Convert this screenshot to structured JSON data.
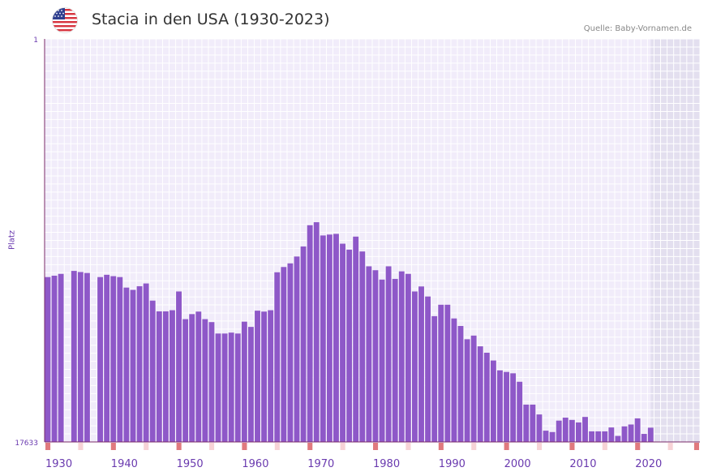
{
  "header": {
    "title": "Stacia in den USA (1930-2023)",
    "source": "Quelle: Baby-Vornamen.de",
    "flag_icon": "usa-flag-icon"
  },
  "chart_data": {
    "type": "bar",
    "title": "Stacia in den USA (1930-2023)",
    "ylabel": "Platz",
    "xlabel": "",
    "y_axis_inverted": true,
    "ylim": [
      1,
      17633
    ],
    "y_ticks": [
      "1",
      "17633"
    ],
    "xlim": [
      1930,
      2029
    ],
    "x_ticks": [
      "1930",
      "1940",
      "1950",
      "1960",
      "1970",
      "1980",
      "1990",
      "2000",
      "2010",
      "2020"
    ],
    "x_tick_values": [
      1930,
      1940,
      1950,
      1960,
      1970,
      1980,
      1990,
      2000,
      2010,
      2020
    ],
    "future_start_year": 2023,
    "series": [
      {
        "name": "Platz",
        "color": "#8e58c8",
        "years": [
          1930,
          1931,
          1932,
          1933,
          1934,
          1935,
          1936,
          1937,
          1938,
          1939,
          1940,
          1941,
          1942,
          1943,
          1944,
          1945,
          1946,
          1947,
          1948,
          1949,
          1950,
          1951,
          1952,
          1953,
          1954,
          1955,
          1956,
          1957,
          1958,
          1959,
          1960,
          1961,
          1962,
          1963,
          1964,
          1965,
          1966,
          1967,
          1968,
          1969,
          1970,
          1971,
          1972,
          1973,
          1974,
          1975,
          1976,
          1977,
          1978,
          1979,
          1980,
          1981,
          1982,
          1983,
          1984,
          1985,
          1986,
          1987,
          1988,
          1989,
          1990,
          1991,
          1992,
          1993,
          1994,
          1995,
          1996,
          1997,
          1998,
          1999,
          2000,
          2001,
          2002,
          2003,
          2004,
          2005,
          2006,
          2007,
          2008,
          2009,
          2010,
          2011,
          2012,
          2013,
          2014,
          2015,
          2016,
          2017,
          2018,
          2019,
          2020,
          2021,
          2022
        ],
        "values": [
          10420,
          10360,
          10280,
          null,
          10150,
          10200,
          10240,
          null,
          10420,
          10320,
          10380,
          10420,
          10880,
          10980,
          10820,
          10700,
          11450,
          11920,
          11920,
          11870,
          11050,
          12260,
          12040,
          11930,
          12260,
          12390,
          12890,
          12890,
          12850,
          12890,
          12370,
          12600,
          11890,
          11930,
          11870,
          10210,
          9980,
          9820,
          9520,
          9080,
          8150,
          8020,
          8600,
          8560,
          8530,
          8960,
          9220,
          8650,
          9300,
          9950,
          10120,
          10530,
          9950,
          10500,
          10170,
          10280,
          11050,
          10830,
          11270,
          12130,
          11630,
          11630,
          12230,
          12560,
          13140,
          12980,
          13450,
          13730,
          14070,
          14500,
          14570,
          14630,
          15000,
          16000,
          16000,
          16430,
          17140,
          17200,
          16700,
          16570,
          16670,
          16780,
          16540,
          17170,
          17170,
          17170,
          17000,
          17370,
          16950,
          16870,
          16600,
          17280,
          17010
        ]
      }
    ],
    "decade_markers": [
      1930,
      1940,
      1950,
      1960,
      1970,
      1980,
      1990,
      2000,
      2010,
      2020,
      2029
    ],
    "light_markers": [
      1935,
      1945,
      1955,
      1965,
      1975,
      1985,
      1995,
      2005,
      2015,
      2025
    ],
    "marker_color": "#e07a7e",
    "light_marker_color": "#f7d3d6"
  }
}
